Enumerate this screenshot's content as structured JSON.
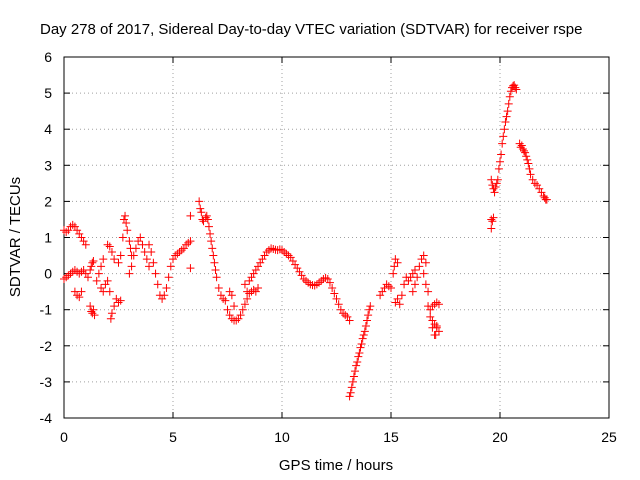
{
  "colors": {
    "series": "#ff0000",
    "grid": "#a0a0a0",
    "axis": "#000000"
  },
  "chart_data": {
    "type": "scatter",
    "title": "Day 278 of 2017, Sidereal Day-to-day VTEC variation (SDTVAR) for receiver rspe",
    "xlabel": "GPS time / hours",
    "ylabel": "SDTVAR / TECUs",
    "xlim": [
      0,
      25
    ],
    "ylim": [
      -4,
      6
    ],
    "xticks": [
      "0",
      "5",
      "10",
      "15",
      "20",
      "25"
    ],
    "yticks": [
      "-4",
      "-3",
      "-2",
      "-1",
      "0",
      "1",
      "2",
      "3",
      "4",
      "5",
      "6"
    ],
    "grid": true,
    "marker": "plus",
    "series": [
      {
        "name": "SDTVAR",
        "points": [
          [
            0.0,
            1.2
          ],
          [
            0.1,
            1.15
          ],
          [
            0.2,
            1.2
          ],
          [
            0.3,
            1.3
          ],
          [
            0.4,
            1.35
          ],
          [
            0.5,
            1.3
          ],
          [
            0.6,
            1.2
          ],
          [
            0.7,
            1.1
          ],
          [
            0.8,
            1.0
          ],
          [
            0.9,
            0.9
          ],
          [
            1.0,
            0.8
          ],
          [
            0.0,
            -0.15
          ],
          [
            0.1,
            -0.1
          ],
          [
            0.2,
            -0.05
          ],
          [
            0.3,
            0.0
          ],
          [
            0.4,
            0.05
          ],
          [
            0.5,
            0.1
          ],
          [
            0.6,
            0.05
          ],
          [
            0.7,
            0.0
          ],
          [
            0.8,
            0.05
          ],
          [
            0.9,
            0.1
          ],
          [
            1.0,
            0.0
          ],
          [
            0.5,
            -0.5
          ],
          [
            0.6,
            -0.6
          ],
          [
            0.7,
            -0.65
          ],
          [
            0.8,
            -0.5
          ],
          [
            1.1,
            -0.1
          ],
          [
            1.2,
            0.1
          ],
          [
            1.25,
            0.2
          ],
          [
            1.3,
            0.3
          ],
          [
            1.35,
            0.35
          ],
          [
            1.2,
            -0.9
          ],
          [
            1.25,
            -1.05
          ],
          [
            1.3,
            -1.1
          ],
          [
            1.35,
            -1.0
          ],
          [
            1.4,
            -1.15
          ],
          [
            1.5,
            -0.2
          ],
          [
            1.6,
            0.0
          ],
          [
            1.7,
            0.2
          ],
          [
            1.8,
            0.4
          ],
          [
            1.7,
            -0.4
          ],
          [
            1.8,
            -0.5
          ],
          [
            1.9,
            -0.3
          ],
          [
            2.0,
            -0.2
          ],
          [
            2.1,
            -0.5
          ],
          [
            2.0,
            0.8
          ],
          [
            2.1,
            0.75
          ],
          [
            2.2,
            0.6
          ],
          [
            2.3,
            0.4
          ],
          [
            2.2,
            -1.1
          ],
          [
            2.15,
            -1.25
          ],
          [
            2.3,
            -0.9
          ],
          [
            2.4,
            -0.7
          ],
          [
            2.5,
            -0.8
          ],
          [
            2.6,
            -0.75
          ],
          [
            2.5,
            0.3
          ],
          [
            2.6,
            0.5
          ],
          [
            2.7,
            1.0
          ],
          [
            2.75,
            1.5
          ],
          [
            2.8,
            1.6
          ],
          [
            2.85,
            1.4
          ],
          [
            2.9,
            1.2
          ],
          [
            3.0,
            0.9
          ],
          [
            3.05,
            0.7
          ],
          [
            3.1,
            0.5
          ],
          [
            3.0,
            0.0
          ],
          [
            3.1,
            0.2
          ],
          [
            3.2,
            0.5
          ],
          [
            3.3,
            0.7
          ],
          [
            3.4,
            0.9
          ],
          [
            3.5,
            1.0
          ],
          [
            3.6,
            0.8
          ],
          [
            3.7,
            0.6
          ],
          [
            3.8,
            0.4
          ],
          [
            3.9,
            0.2
          ],
          [
            3.9,
            0.8
          ],
          [
            4.0,
            0.6
          ],
          [
            4.1,
            0.3
          ],
          [
            4.2,
            0.0
          ],
          [
            4.3,
            -0.3
          ],
          [
            4.4,
            -0.6
          ],
          [
            4.5,
            -0.7
          ],
          [
            4.6,
            -0.6
          ],
          [
            4.7,
            -0.4
          ],
          [
            4.8,
            -0.1
          ],
          [
            4.9,
            0.2
          ],
          [
            5.0,
            0.4
          ],
          [
            5.1,
            0.5
          ],
          [
            5.2,
            0.55
          ],
          [
            5.3,
            0.6
          ],
          [
            5.4,
            0.65
          ],
          [
            5.5,
            0.7
          ],
          [
            5.6,
            0.8
          ],
          [
            5.7,
            0.85
          ],
          [
            5.8,
            0.9
          ],
          [
            5.8,
            1.6
          ],
          [
            5.8,
            0.15
          ],
          [
            6.2,
            2.0
          ],
          [
            6.25,
            1.8
          ],
          [
            6.3,
            1.7
          ],
          [
            6.35,
            1.5
          ],
          [
            6.4,
            1.45
          ],
          [
            6.5,
            1.55
          ],
          [
            6.55,
            1.6
          ],
          [
            6.6,
            1.5
          ],
          [
            6.65,
            1.3
          ],
          [
            6.7,
            1.1
          ],
          [
            6.75,
            0.9
          ],
          [
            6.8,
            0.7
          ],
          [
            6.85,
            0.5
          ],
          [
            6.9,
            0.3
          ],
          [
            6.95,
            0.1
          ],
          [
            7.0,
            -0.1
          ],
          [
            7.1,
            -0.4
          ],
          [
            7.2,
            -0.6
          ],
          [
            7.3,
            -0.7
          ],
          [
            7.4,
            -0.75
          ],
          [
            7.5,
            -1.0
          ],
          [
            7.6,
            -1.15
          ],
          [
            7.7,
            -1.25
          ],
          [
            7.8,
            -1.3
          ],
          [
            7.9,
            -1.3
          ],
          [
            8.0,
            -1.25
          ],
          [
            8.1,
            -1.15
          ],
          [
            8.2,
            -1.0
          ],
          [
            8.3,
            -0.85
          ],
          [
            8.4,
            -0.7
          ],
          [
            7.6,
            -0.5
          ],
          [
            7.7,
            -0.6
          ],
          [
            7.8,
            -0.9
          ],
          [
            8.3,
            -0.3
          ],
          [
            8.4,
            -0.5
          ],
          [
            8.5,
            -0.55
          ],
          [
            8.6,
            -0.5
          ],
          [
            8.7,
            -0.45
          ],
          [
            8.8,
            -0.5
          ],
          [
            8.9,
            -0.4
          ],
          [
            8.5,
            -0.2
          ],
          [
            8.6,
            -0.1
          ],
          [
            8.7,
            0.0
          ],
          [
            8.8,
            0.1
          ],
          [
            8.9,
            0.2
          ],
          [
            9.0,
            0.3
          ],
          [
            9.1,
            0.4
          ],
          [
            9.2,
            0.5
          ],
          [
            9.3,
            0.6
          ],
          [
            9.4,
            0.65
          ],
          [
            9.5,
            0.7
          ],
          [
            9.6,
            0.68
          ],
          [
            9.7,
            0.66
          ],
          [
            9.8,
            0.65
          ],
          [
            9.9,
            0.67
          ],
          [
            10.0,
            0.65
          ],
          [
            10.1,
            0.6
          ],
          [
            10.2,
            0.55
          ],
          [
            10.3,
            0.5
          ],
          [
            10.4,
            0.45
          ],
          [
            10.5,
            0.35
          ],
          [
            10.6,
            0.25
          ],
          [
            10.7,
            0.15
          ],
          [
            10.8,
            0.05
          ],
          [
            10.9,
            -0.05
          ],
          [
            11.0,
            -0.15
          ],
          [
            11.1,
            -0.2
          ],
          [
            11.2,
            -0.25
          ],
          [
            11.3,
            -0.3
          ],
          [
            11.4,
            -0.32
          ],
          [
            11.5,
            -0.33
          ],
          [
            11.6,
            -0.3
          ],
          [
            11.7,
            -0.25
          ],
          [
            11.8,
            -0.2
          ],
          [
            11.9,
            -0.15
          ],
          [
            12.0,
            -0.12
          ],
          [
            12.1,
            -0.15
          ],
          [
            12.2,
            -0.25
          ],
          [
            12.3,
            -0.4
          ],
          [
            12.4,
            -0.55
          ],
          [
            12.5,
            -0.7
          ],
          [
            12.6,
            -0.85
          ],
          [
            12.7,
            -1.0
          ],
          [
            12.8,
            -1.1
          ],
          [
            12.9,
            -1.15
          ],
          [
            13.0,
            -1.2
          ],
          [
            13.1,
            -1.3
          ],
          [
            13.1,
            -3.4
          ],
          [
            13.15,
            -3.3
          ],
          [
            13.2,
            -3.15
          ],
          [
            13.25,
            -3.0
          ],
          [
            13.3,
            -2.85
          ],
          [
            13.35,
            -2.7
          ],
          [
            13.4,
            -2.55
          ],
          [
            13.45,
            -2.45
          ],
          [
            13.5,
            -2.3
          ],
          [
            13.55,
            -2.2
          ],
          [
            13.6,
            -2.05
          ],
          [
            13.65,
            -1.95
          ],
          [
            13.7,
            -1.8
          ],
          [
            13.75,
            -1.7
          ],
          [
            13.8,
            -1.6
          ],
          [
            13.85,
            -1.45
          ],
          [
            13.9,
            -1.3
          ],
          [
            13.95,
            -1.15
          ],
          [
            14.0,
            -1.0
          ],
          [
            14.05,
            -0.9
          ],
          [
            14.5,
            -0.6
          ],
          [
            14.6,
            -0.5
          ],
          [
            14.7,
            -0.4
          ],
          [
            14.8,
            -0.3
          ],
          [
            14.9,
            -0.35
          ],
          [
            15.0,
            -0.4
          ],
          [
            15.1,
            0.0
          ],
          [
            15.15,
            0.2
          ],
          [
            15.2,
            0.4
          ],
          [
            15.3,
            0.3
          ],
          [
            15.2,
            -0.8
          ],
          [
            15.3,
            -0.7
          ],
          [
            15.4,
            -0.85
          ],
          [
            15.5,
            -0.6
          ],
          [
            15.6,
            -0.3
          ],
          [
            15.7,
            -0.1
          ],
          [
            15.8,
            -0.2
          ],
          [
            15.9,
            -0.1
          ],
          [
            16.0,
            0.0
          ],
          [
            16.1,
            0.1
          ],
          [
            16.0,
            -0.5
          ],
          [
            16.1,
            -0.3
          ],
          [
            16.2,
            -0.1
          ],
          [
            16.3,
            0.2
          ],
          [
            16.4,
            0.4
          ],
          [
            16.5,
            0.5
          ],
          [
            16.6,
            0.3
          ],
          [
            16.5,
            0.0
          ],
          [
            16.6,
            -0.3
          ],
          [
            16.7,
            -0.5
          ],
          [
            16.7,
            -0.9
          ],
          [
            16.8,
            -1.2
          ],
          [
            16.9,
            -1.5
          ],
          [
            17.0,
            -1.7
          ],
          [
            16.8,
            -1.0
          ],
          [
            16.9,
            -0.9
          ],
          [
            17.0,
            -0.85
          ],
          [
            17.1,
            -0.8
          ],
          [
            17.2,
            -0.85
          ],
          [
            17.1,
            -1.5
          ],
          [
            16.9,
            -1.3
          ],
          [
            17.0,
            -1.4
          ],
          [
            17.1,
            -1.45
          ],
          [
            17.2,
            -1.6
          ],
          [
            17.05,
            -1.7
          ],
          [
            19.6,
            1.5
          ],
          [
            19.65,
            1.45
          ],
          [
            19.7,
            1.55
          ],
          [
            19.6,
            1.25
          ],
          [
            19.6,
            2.6
          ],
          [
            19.65,
            2.45
          ],
          [
            19.7,
            2.35
          ],
          [
            19.75,
            2.25
          ],
          [
            19.8,
            2.4
          ],
          [
            19.85,
            2.5
          ],
          [
            19.9,
            2.6
          ],
          [
            19.95,
            2.9
          ],
          [
            20.0,
            3.1
          ],
          [
            20.05,
            3.3
          ],
          [
            20.1,
            3.6
          ],
          [
            20.15,
            3.8
          ],
          [
            20.2,
            4.0
          ],
          [
            20.25,
            4.2
          ],
          [
            20.3,
            4.35
          ],
          [
            20.35,
            4.5
          ],
          [
            20.4,
            4.7
          ],
          [
            20.45,
            4.9
          ],
          [
            20.5,
            5.05
          ],
          [
            20.55,
            5.15
          ],
          [
            20.6,
            5.2
          ],
          [
            20.65,
            5.22
          ],
          [
            20.7,
            5.15
          ],
          [
            20.75,
            5.1
          ],
          [
            20.9,
            3.6
          ],
          [
            20.95,
            3.5
          ],
          [
            21.0,
            3.55
          ],
          [
            21.05,
            3.45
          ],
          [
            21.1,
            3.4
          ],
          [
            21.15,
            3.35
          ],
          [
            21.2,
            3.25
          ],
          [
            21.25,
            3.15
          ],
          [
            21.3,
            3.05
          ],
          [
            21.35,
            2.9
          ],
          [
            21.4,
            2.75
          ],
          [
            21.5,
            2.6
          ],
          [
            21.6,
            2.5
          ],
          [
            21.7,
            2.45
          ],
          [
            21.8,
            2.35
          ],
          [
            21.9,
            2.25
          ],
          [
            22.0,
            2.15
          ],
          [
            22.05,
            2.1
          ],
          [
            22.1,
            2.05
          ],
          [
            22.15,
            2.05
          ]
        ]
      }
    ]
  }
}
